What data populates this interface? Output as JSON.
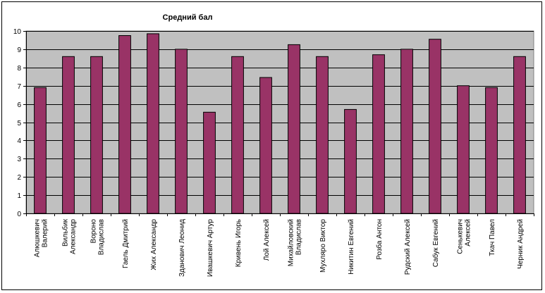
{
  "chart_data": {
    "type": "bar",
    "title": "Средний бал",
    "categories": [
      [
        "Алюшкевич",
        "Валерий"
      ],
      [
        "Вильбик",
        "Александр"
      ],
      [
        "Вороно",
        "Владислав"
      ],
      [
        "Гаель Дмитрий"
      ],
      [
        "Жих Александр"
      ],
      [
        "Зданович Леонид"
      ],
      [
        "Ивашкевич Артур"
      ],
      [
        "Кривень Игорь"
      ],
      [
        "Лой Алексей"
      ],
      [
        "Михайловский",
        "Владислав"
      ],
      [
        "Мухляро Виктор"
      ],
      [
        "Никитин Евгений"
      ],
      [
        "Розба Антон"
      ],
      [
        "Рудский Алексей"
      ],
      [
        "Сабук Евгений"
      ],
      [
        "Сенькевич",
        "Алексей"
      ],
      [
        "Ткач Павел"
      ],
      [
        "Черник Андрей"
      ]
    ],
    "values": [
      6.9,
      8.6,
      8.6,
      9.75,
      9.85,
      9.0,
      5.55,
      8.6,
      7.45,
      9.25,
      8.6,
      5.7,
      8.7,
      9.0,
      9.55,
      7.0,
      6.9,
      8.6
    ],
    "yticks": [
      "0",
      "1",
      "2",
      "3",
      "4",
      "5",
      "6",
      "7",
      "8",
      "9",
      "10"
    ],
    "ylim": [
      0,
      10
    ],
    "grid": true,
    "legend": "none",
    "colors": {
      "bar": "#993366",
      "plot_background": "#c0c0c0",
      "gridline": "#000000"
    }
  }
}
